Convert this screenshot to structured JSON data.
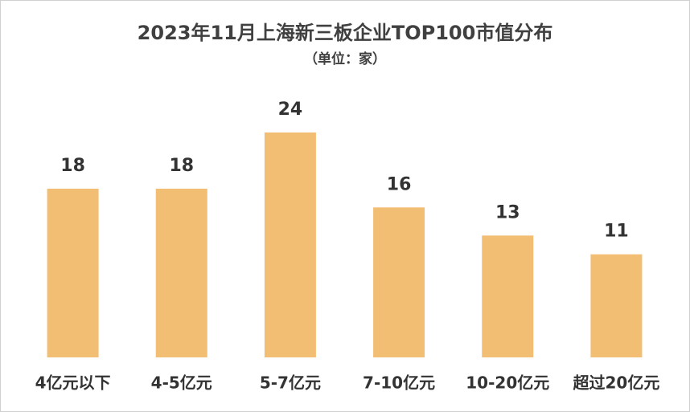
{
  "chart_data": {
    "type": "bar",
    "title": "2023年11月上海新三板企业TOP100市值分布",
    "subtitle": "（单位：家）",
    "categories": [
      "4亿元以下",
      "4-5亿元",
      "5-7亿元",
      "7-10亿元",
      "10-20亿元",
      "超过20亿元"
    ],
    "values": [
      18,
      18,
      24,
      16,
      13,
      11
    ],
    "color": "#f2be74"
  }
}
